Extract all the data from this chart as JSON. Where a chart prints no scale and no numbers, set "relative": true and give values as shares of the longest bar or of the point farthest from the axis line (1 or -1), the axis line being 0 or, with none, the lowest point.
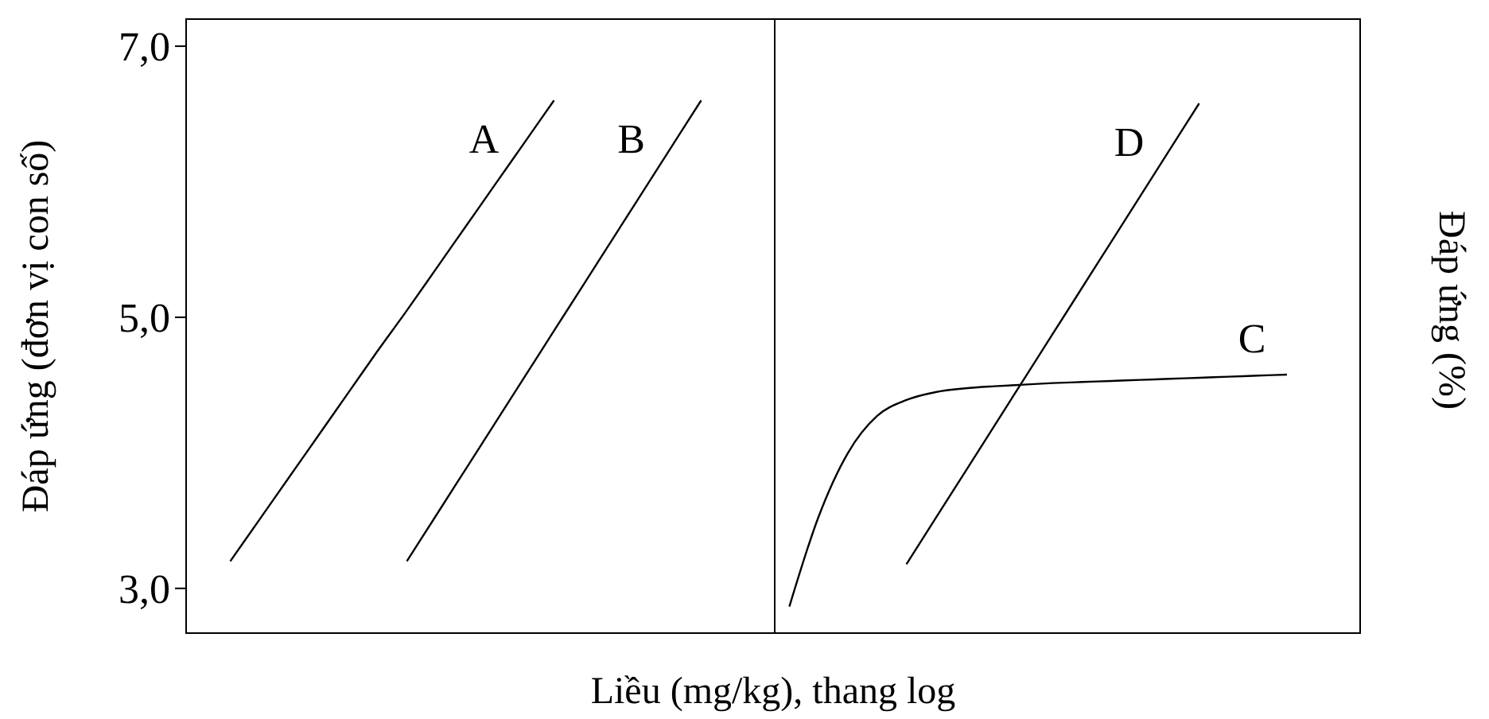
{
  "chart_data": [
    {
      "type": "line",
      "ylabel": "Đáp ứng (đơn vị con số)",
      "xlabel": "Liều (mg/kg), thang log",
      "categories": [
        null,
        null,
        null,
        null,
        null,
        null,
        null,
        null,
        null,
        null,
        null,
        null,
        null,
        null,
        null,
        null,
        null,
        null,
        null,
        null
      ],
      "ylim": [
        2.67,
        7.2
      ],
      "yticks": [
        {
          "value": 3,
          "label": "3,0"
        },
        {
          "value": 5,
          "label": "5,0"
        },
        {
          "value": 7,
          "label": "7,0"
        }
      ],
      "tick_labels": "y",
      "series": [
        {
          "name": "A",
          "color": "#000000",
          "values": [
            null,
            3.2,
            3.51,
            3.82,
            4.13,
            4.44,
            4.75,
            5.05,
            5.36,
            5.67,
            5.98,
            6.29,
            6.6,
            null,
            null,
            null,
            null,
            null,
            null,
            null
          ]
        },
        {
          "name": "B",
          "color": "#000000",
          "values": [
            null,
            null,
            null,
            null,
            null,
            null,
            null,
            3.2,
            3.54,
            3.88,
            4.22,
            4.56,
            4.9,
            5.24,
            5.58,
            5.92,
            6.26,
            6.6,
            null,
            null
          ]
        }
      ]
    },
    {
      "type": "line",
      "y2label": "Đáp ứng (%)",
      "relative": true,
      "categories": [
        null,
        null,
        null,
        null,
        null,
        null,
        null,
        null,
        null,
        null,
        null,
        null,
        null,
        null,
        null,
        null,
        null,
        null,
        null,
        null
      ],
      "tick_labels": false,
      "series": [
        {
          "name": "C",
          "color": "#000000",
          "values": [
            0.05,
            0.22,
            0.34,
            0.41,
            0.44,
            0.455,
            0.462,
            0.466,
            0.469,
            0.472,
            0.474,
            0.476,
            0.478,
            0.48,
            0.482,
            0.484,
            0.486,
            0.488,
            null,
            null
          ]
        },
        {
          "name": "D",
          "color": "#000000",
          "values": [
            null,
            null,
            null,
            null,
            0.13,
            0.217,
            0.304,
            0.391,
            0.478,
            0.565,
            0.652,
            0.739,
            0.826,
            0.913,
            1.0,
            null,
            null,
            null,
            null,
            null
          ]
        }
      ]
    }
  ]
}
